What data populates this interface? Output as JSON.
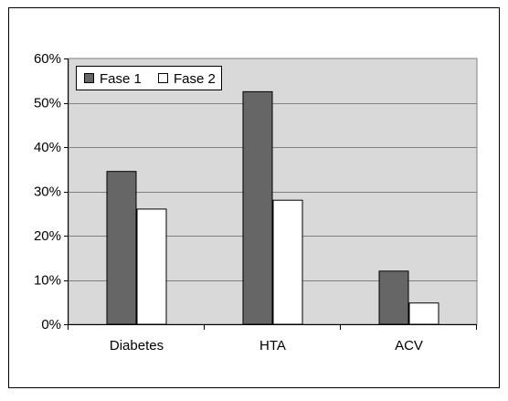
{
  "chart_data": {
    "type": "bar",
    "categories": [
      "Diabetes",
      "HTA",
      "ACV"
    ],
    "series": [
      {
        "name": "Fase 1",
        "values": [
          34.5,
          52.5,
          12.0
        ],
        "color": "#666666"
      },
      {
        "name": "Fase 2",
        "values": [
          26.0,
          28.0,
          4.8
        ],
        "color": "#ffffff"
      }
    ],
    "ylim": [
      0,
      60
    ],
    "y_ticks": [
      0,
      10,
      20,
      30,
      40,
      50,
      60
    ],
    "y_tick_labels": [
      "0%",
      "10%",
      "20%",
      "30%",
      "40%",
      "50%",
      "60%"
    ],
    "grid": true,
    "legend_position": "top-left",
    "plot_background": "#d9d9d9"
  }
}
